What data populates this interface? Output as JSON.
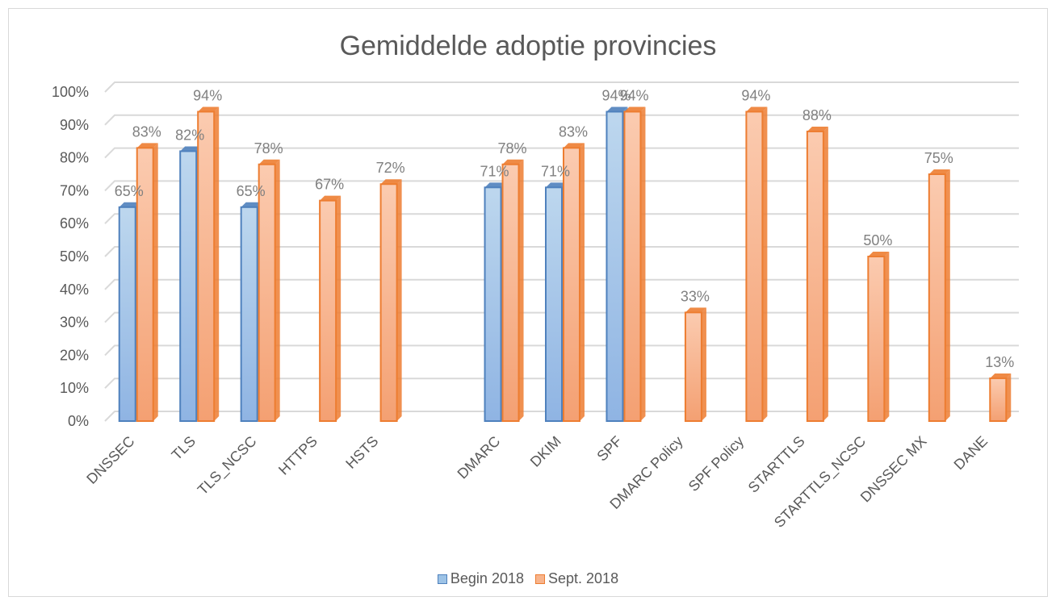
{
  "chart_data": {
    "type": "bar",
    "title": "Gemiddelde adoptie provincies",
    "categories": [
      "DNSSEC",
      "TLS",
      "TLS_NCSC",
      "HTTPS",
      "HSTS",
      "",
      "DMARC",
      "DKIM",
      "SPF",
      "DMARC Policy",
      "SPF Policy",
      "STARTTLS",
      "STARTTLS_NCSC",
      "DNSSEC MX",
      "DANE"
    ],
    "series": [
      {
        "name": "Begin 2018",
        "color": "#9dc3e6",
        "edge": "#4f81bd",
        "values": [
          65,
          82,
          65,
          null,
          null,
          null,
          71,
          71,
          94,
          null,
          null,
          null,
          null,
          null,
          null
        ],
        "labels": [
          "65%",
          "82%",
          "65%",
          "",
          "",
          "",
          "71%",
          "71%",
          "94%",
          "",
          "",
          "",
          "",
          "",
          ""
        ]
      },
      {
        "name": "Sept. 2018",
        "color": "#f8b48c",
        "edge": "#ed7d31",
        "values": [
          83,
          94,
          78,
          67,
          72,
          null,
          78,
          83,
          94,
          33,
          94,
          88,
          50,
          75,
          13
        ],
        "labels": [
          "83%",
          "94%",
          "78%",
          "67%",
          "72%",
          "",
          "78%",
          "83%",
          "94%",
          "33%",
          "94%",
          "88%",
          "50%",
          "75%",
          "13%"
        ]
      }
    ],
    "yticks": [
      "0%",
      "10%",
      "20%",
      "30%",
      "40%",
      "50%",
      "60%",
      "70%",
      "80%",
      "90%",
      "100%"
    ],
    "ylim": [
      0,
      100
    ],
    "grid": true,
    "legend_position": "bottom"
  }
}
